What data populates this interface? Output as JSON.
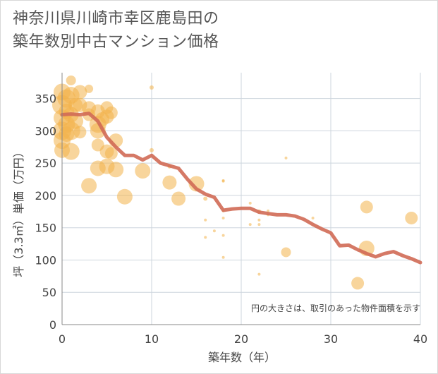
{
  "title_lines": [
    "神奈川県川崎市幸区鹿島田の",
    "築年数別中古マンション価格"
  ],
  "colors": {
    "bubble": "#f2b24a",
    "line": "#d06a55",
    "grid": "#cdd5dd",
    "axis": "#888888"
  },
  "chart_data": {
    "type": "scatter",
    "title": "神奈川県川崎市幸区鹿島田の築年数別中古マンション価格",
    "xlabel": "築年数（年）",
    "ylabel": "坪（3.3㎡）単価（万円）",
    "xlim": [
      0,
      40
    ],
    "ylim": [
      0,
      390
    ],
    "xticks": [
      0,
      10,
      20,
      30,
      40
    ],
    "yticks": [
      0,
      50,
      100,
      150,
      200,
      250,
      300,
      350
    ],
    "grid": true,
    "note": "円の大きさは、取引のあった物件面積を示す",
    "scatter": [
      {
        "x": 0,
        "y": 360,
        "s": 12
      },
      {
        "x": 0,
        "y": 340,
        "s": 14
      },
      {
        "x": 0,
        "y": 320,
        "s": 12
      },
      {
        "x": 0,
        "y": 300,
        "s": 13
      },
      {
        "x": 0,
        "y": 285,
        "s": 12
      },
      {
        "x": 0,
        "y": 270,
        "s": 11
      },
      {
        "x": 0.5,
        "y": 350,
        "s": 13
      },
      {
        "x": 0.5,
        "y": 330,
        "s": 11
      },
      {
        "x": 0.5,
        "y": 310,
        "s": 12
      },
      {
        "x": 0.5,
        "y": 295,
        "s": 11
      },
      {
        "x": 1,
        "y": 378,
        "s": 7
      },
      {
        "x": 1,
        "y": 355,
        "s": 12
      },
      {
        "x": 1,
        "y": 325,
        "s": 11
      },
      {
        "x": 1,
        "y": 300,
        "s": 13
      },
      {
        "x": 1,
        "y": 268,
        "s": 12
      },
      {
        "x": 1.5,
        "y": 340,
        "s": 10
      },
      {
        "x": 1.5,
        "y": 315,
        "s": 11
      },
      {
        "x": 2,
        "y": 360,
        "s": 10
      },
      {
        "x": 2,
        "y": 340,
        "s": 10
      },
      {
        "x": 2,
        "y": 298,
        "s": 9
      },
      {
        "x": 3,
        "y": 365,
        "s": 6
      },
      {
        "x": 3,
        "y": 335,
        "s": 10
      },
      {
        "x": 3,
        "y": 325,
        "s": 9
      },
      {
        "x": 3,
        "y": 215,
        "s": 11
      },
      {
        "x": 4,
        "y": 330,
        "s": 10
      },
      {
        "x": 4,
        "y": 310,
        "s": 12
      },
      {
        "x": 4,
        "y": 300,
        "s": 11
      },
      {
        "x": 4,
        "y": 278,
        "s": 9
      },
      {
        "x": 4,
        "y": 242,
        "s": 11
      },
      {
        "x": 4.5,
        "y": 318,
        "s": 10
      },
      {
        "x": 5,
        "y": 336,
        "s": 9
      },
      {
        "x": 5,
        "y": 322,
        "s": 10
      },
      {
        "x": 5,
        "y": 268,
        "s": 10
      },
      {
        "x": 5,
        "y": 245,
        "s": 11
      },
      {
        "x": 5.5,
        "y": 328,
        "s": 9
      },
      {
        "x": 5.5,
        "y": 265,
        "s": 9
      },
      {
        "x": 6,
        "y": 285,
        "s": 10
      },
      {
        "x": 6,
        "y": 240,
        "s": 11
      },
      {
        "x": 7,
        "y": 198,
        "s": 11
      },
      {
        "x": 9,
        "y": 238,
        "s": 11
      },
      {
        "x": 10,
        "y": 367,
        "s": 3
      },
      {
        "x": 10,
        "y": 270,
        "s": 3
      },
      {
        "x": 12,
        "y": 220,
        "s": 10
      },
      {
        "x": 12,
        "y": 245,
        "s": 3
      },
      {
        "x": 13,
        "y": 195,
        "s": 10
      },
      {
        "x": 15,
        "y": 218,
        "s": 11
      },
      {
        "x": 16,
        "y": 195,
        "s": 3
      },
      {
        "x": 16,
        "y": 162,
        "s": 2
      },
      {
        "x": 16,
        "y": 135,
        "s": 2
      },
      {
        "x": 17,
        "y": 145,
        "s": 2
      },
      {
        "x": 18,
        "y": 223,
        "s": 2
      },
      {
        "x": 18,
        "y": 222,
        "s": 2
      },
      {
        "x": 18,
        "y": 176,
        "s": 2
      },
      {
        "x": 18,
        "y": 165,
        "s": 2
      },
      {
        "x": 18,
        "y": 138,
        "s": 2
      },
      {
        "x": 18,
        "y": 104,
        "s": 2
      },
      {
        "x": 21,
        "y": 188,
        "s": 2
      },
      {
        "x": 21,
        "y": 155,
        "s": 2
      },
      {
        "x": 22,
        "y": 175,
        "s": 3
      },
      {
        "x": 22,
        "y": 162,
        "s": 2
      },
      {
        "x": 22,
        "y": 155,
        "s": 2
      },
      {
        "x": 22,
        "y": 78,
        "s": 2
      },
      {
        "x": 23,
        "y": 176,
        "s": 2
      },
      {
        "x": 23,
        "y": 170,
        "s": 2
      },
      {
        "x": 25,
        "y": 258,
        "s": 2
      },
      {
        "x": 25,
        "y": 112,
        "s": 7
      },
      {
        "x": 28,
        "y": 165,
        "s": 2
      },
      {
        "x": 33,
        "y": 64,
        "s": 9
      },
      {
        "x": 34,
        "y": 182,
        "s": 9
      },
      {
        "x": 34,
        "y": 118,
        "s": 11
      },
      {
        "x": 39,
        "y": 165,
        "s": 9
      }
    ],
    "series": [
      {
        "type": "line",
        "x": [
          0,
          1,
          2,
          3,
          4,
          5,
          6,
          7,
          8,
          9,
          10,
          11,
          12,
          13,
          14,
          15,
          16,
          17,
          18,
          19,
          20,
          21,
          22,
          23,
          24,
          25,
          26,
          27,
          28,
          29,
          30,
          31,
          32,
          33,
          34,
          35,
          36,
          37,
          38,
          39,
          40
        ],
        "values": [
          325,
          326,
          325,
          327,
          315,
          290,
          275,
          262,
          262,
          255,
          262,
          250,
          246,
          242,
          225,
          210,
          202,
          197,
          177,
          179,
          180,
          180,
          174,
          172,
          170,
          170,
          168,
          163,
          155,
          148,
          142,
          122,
          123,
          116,
          110,
          105,
          110,
          113,
          107,
          102,
          96
        ]
      }
    ]
  }
}
